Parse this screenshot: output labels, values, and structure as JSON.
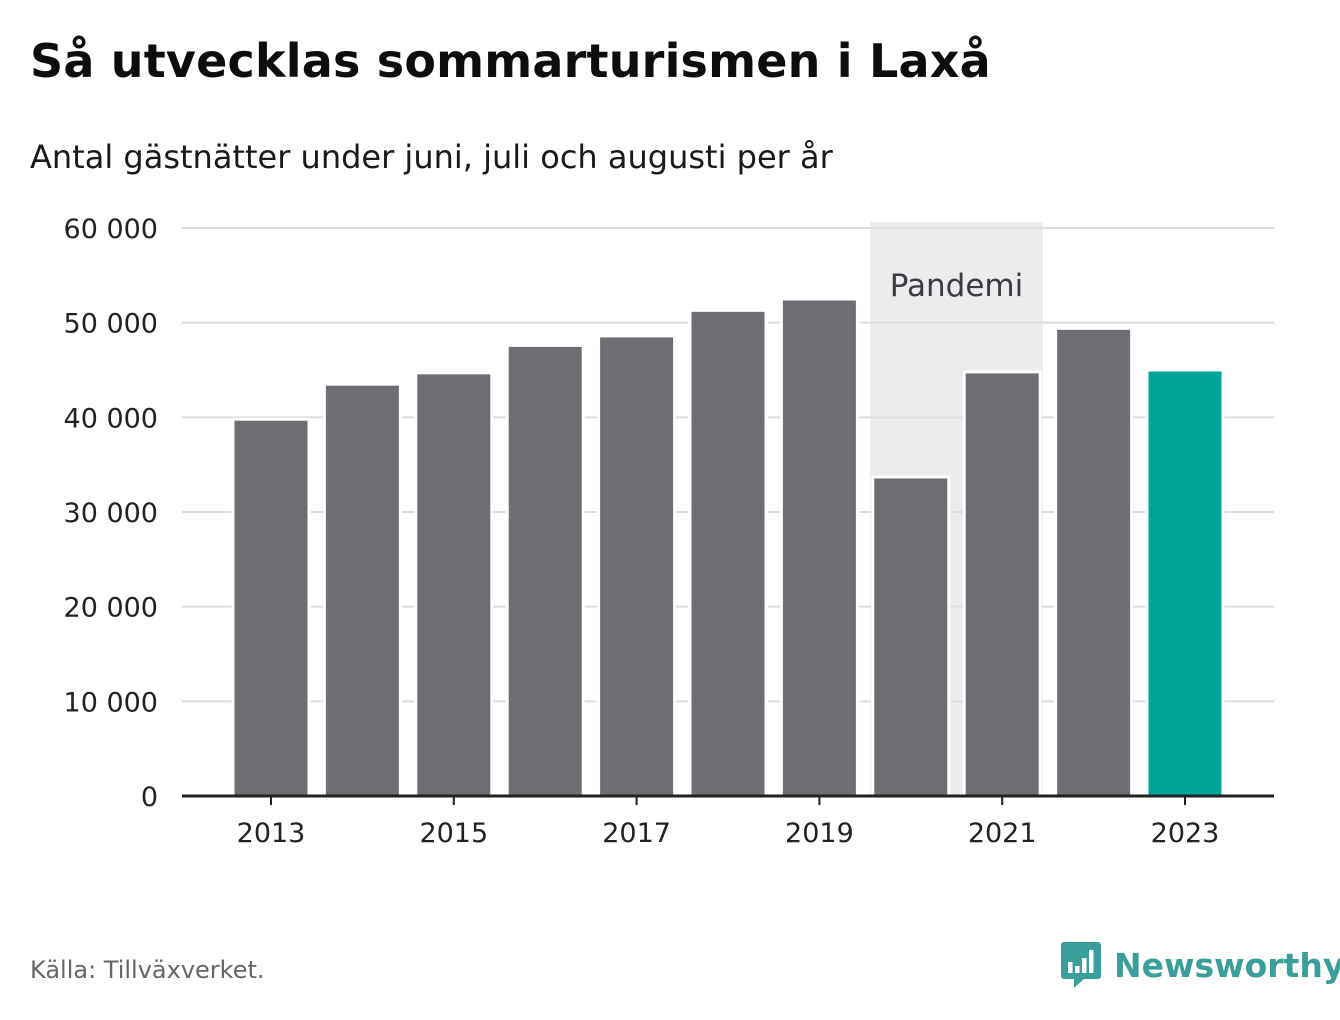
{
  "title": "Så utvecklas sommarturismen i Laxå",
  "subtitle": "Antal gästnätter under juni, juli och augusti per år",
  "source": "Källa: Tillväxverket.",
  "brand": {
    "name": "Newsworthy",
    "icon": "newsworthy-logo-icon"
  },
  "colors": {
    "bar": "#6e6d74",
    "highlight": "#00a59a",
    "pandemic_band": "#ececec",
    "grid": "#dcdcdc",
    "axis": "#222222"
  },
  "chart_data": {
    "type": "bar",
    "title": "Så utvecklas sommarturismen i Laxå",
    "subtitle": "Antal gästnätter under juni, juli och augusti per år",
    "xlabel": "",
    "ylabel": "",
    "categories": [
      "2013",
      "2014",
      "2015",
      "2016",
      "2017",
      "2018",
      "2019",
      "2020",
      "2021",
      "2022",
      "2023"
    ],
    "values": [
      39800,
      43500,
      44700,
      47600,
      48600,
      51300,
      52500,
      33700,
      44800,
      49400,
      45000
    ],
    "highlight_category": "2023",
    "ylim": [
      0,
      60000
    ],
    "yticks": [
      0,
      10000,
      20000,
      30000,
      40000,
      50000,
      60000
    ],
    "ytick_labels": [
      "0",
      "10 000",
      "20 000",
      "30 000",
      "40 000",
      "50 000",
      "60 000"
    ],
    "xtick_labels": [
      "2013",
      "2015",
      "2017",
      "2019",
      "2021",
      "2023"
    ],
    "grid": true,
    "annotations": [
      {
        "label": "Pandemi",
        "from": "2020",
        "to": "2021"
      }
    ]
  }
}
